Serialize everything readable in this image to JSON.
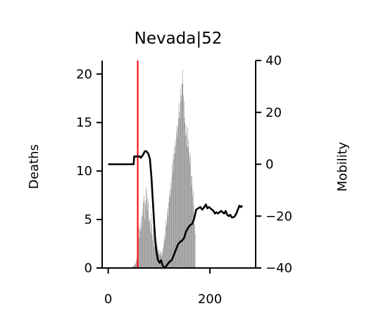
{
  "chart_data": {
    "type": "bar",
    "title": "Nevada|52",
    "ylabel": "Deaths",
    "y2label": "Mobility",
    "xlim": [
      -12,
      290
    ],
    "ylim": [
      0,
      21.4
    ],
    "y2lim": [
      -40,
      40
    ],
    "xticks": [
      0,
      200
    ],
    "yticks": [
      0,
      5,
      10,
      15,
      20
    ],
    "y2ticks": [
      40,
      20,
      0,
      -20,
      -40
    ],
    "y2ticklabels": [
      "40",
      "20",
      "0",
      "−20",
      "−40"
    ],
    "grid": false,
    "legend": "none",
    "colors": {
      "bars": "#808080",
      "mobility": "#000000",
      "marker": "#ff0000"
    },
    "vline_x": 58,
    "deaths_x_start": 28,
    "deaths": [
      0,
      0,
      0,
      0,
      0,
      0,
      0,
      0,
      0,
      0,
      0,
      0,
      0,
      0,
      0,
      0,
      0,
      0,
      0.1,
      0.1,
      0.1,
      0.2,
      0.2,
      0.3,
      0.3,
      0.4,
      0.5,
      0.7,
      1.0,
      1.5,
      2.1,
      2.6,
      4.2,
      3.1,
      4.0,
      4.6,
      3.8,
      5.2,
      4.2,
      6.0,
      5.4,
      6.8,
      7.5,
      6.9,
      5.0,
      6.5,
      8.3,
      7.0,
      8.0,
      5.9,
      7.2,
      6.8,
      4.8,
      5.2,
      4.9,
      3.8,
      4.5,
      5.7,
      3.5,
      2.9,
      4.1,
      3.3,
      2.2,
      3.0,
      2.6,
      1.9,
      2.4,
      2.0,
      1.6,
      2.2,
      1.8,
      1.5,
      1.9,
      1.4,
      1.7,
      1.3,
      1.6,
      1.2,
      1.8,
      1.5,
      2.0,
      2.4,
      2.9,
      3.4,
      3.0,
      4.2,
      5.0,
      4.5,
      5.8,
      6.2,
      5.3,
      6.8,
      7.3,
      8.0,
      7.5,
      8.8,
      8.2,
      9.4,
      10.8,
      10.0,
      11.8,
      11.2,
      12.5,
      11.8,
      13.2,
      12.6,
      14.0,
      14.7,
      13.5,
      14.6,
      15.4,
      17.0,
      16.1,
      15.5,
      18.5,
      17.2,
      17.8,
      19.0,
      20.5,
      19.0,
      17.8,
      17.2,
      15.5,
      15.0,
      13.6,
      14.7,
      13.9,
      12.5,
      14.5,
      12.5,
      13.3,
      12.0,
      11.4,
      10.7,
      11.8,
      9.5,
      8.5,
      9.4,
      7.5,
      8.0,
      6.5,
      5.5,
      4.5,
      3.5
    ],
    "mobility": [
      [
        0,
        0
      ],
      [
        50,
        0
      ],
      [
        51,
        3
      ],
      [
        62,
        3
      ],
      [
        64,
        2.5
      ],
      [
        68,
        3.5
      ],
      [
        72,
        5
      ],
      [
        75,
        5
      ],
      [
        79,
        4
      ],
      [
        82,
        2
      ],
      [
        85,
        -5
      ],
      [
        88,
        -15
      ],
      [
        92,
        -28
      ],
      [
        95,
        -34
      ],
      [
        98,
        -37
      ],
      [
        101,
        -38
      ],
      [
        104,
        -37
      ],
      [
        107,
        -39
      ],
      [
        110,
        -40
      ],
      [
        113,
        -39.5
      ],
      [
        117,
        -38.5
      ],
      [
        121,
        -37.5
      ],
      [
        125,
        -37
      ],
      [
        129,
        -35
      ],
      [
        133,
        -33
      ],
      [
        137,
        -31
      ],
      [
        141,
        -30
      ],
      [
        145,
        -29.5
      ],
      [
        149,
        -28.5
      ],
      [
        153,
        -26
      ],
      [
        157,
        -24.5
      ],
      [
        161,
        -23.5
      ],
      [
        165,
        -23
      ],
      [
        169,
        -21
      ],
      [
        173,
        -17.5
      ],
      [
        177,
        -17
      ],
      [
        181,
        -16.5
      ],
      [
        185,
        -17.5
      ],
      [
        189,
        -16.5
      ],
      [
        192,
        -15.5
      ],
      [
        195,
        -17
      ],
      [
        198,
        -16.5
      ],
      [
        201,
        -17
      ],
      [
        204,
        -17.5
      ],
      [
        207,
        -18
      ],
      [
        210,
        -19
      ],
      [
        213,
        -18.5
      ],
      [
        216,
        -19
      ],
      [
        219,
        -18.5
      ],
      [
        222,
        -18
      ],
      [
        225,
        -18.5
      ],
      [
        228,
        -19
      ],
      [
        231,
        -18
      ],
      [
        234,
        -19.5
      ],
      [
        237,
        -20
      ],
      [
        240,
        -19.5
      ],
      [
        243,
        -20.5
      ],
      [
        246,
        -20.5
      ],
      [
        249,
        -20
      ],
      [
        252,
        -19
      ],
      [
        255,
        -17.5
      ],
      [
        258,
        -16
      ],
      [
        261,
        -16.5
      ],
      [
        264,
        -16
      ]
    ]
  }
}
